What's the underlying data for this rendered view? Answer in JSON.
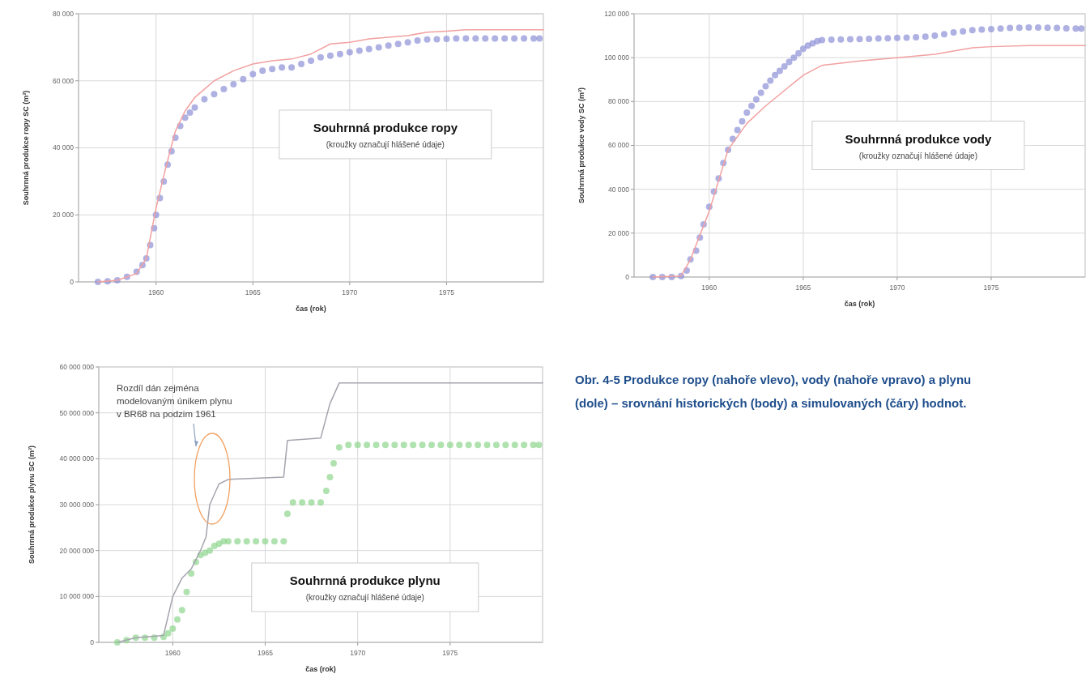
{
  "chart_data": [
    {
      "type": "line",
      "title": "Souhrnná produkce ropy",
      "subtitle": "(kroužky označují hlášené údaje)",
      "xlabel": "čas (rok)",
      "ylabel": "Souhrnná produkce ropy SC (m³)",
      "xlim": [
        1956,
        1980
      ],
      "xticks": [
        1960,
        1965,
        1970,
        1975
      ],
      "ylim": [
        0,
        80000
      ],
      "yticks": [
        {
          "value": 0,
          "label": "0"
        },
        {
          "value": 20000,
          "label": "20 000"
        },
        {
          "value": 40000,
          "label": "40 000"
        },
        {
          "value": 60000,
          "label": "60 000"
        },
        {
          "value": 80000,
          "label": "80 000"
        }
      ],
      "grid": true,
      "series": [
        {
          "type": "scatter",
          "marker": "circle",
          "color": "#8c90d6",
          "x": [
            1957,
            1957.5,
            1958,
            1958.5,
            1959,
            1959.3,
            1959.5,
            1959.7,
            1959.9,
            1960,
            1960.2,
            1960.4,
            1960.6,
            1960.8,
            1961,
            1961.25,
            1961.5,
            1961.75,
            1962,
            1962.5,
            1963,
            1963.5,
            1964,
            1964.5,
            1965,
            1965.5,
            1966,
            1966.5,
            1967,
            1967.5,
            1968,
            1968.5,
            1969,
            1969.5,
            1970,
            1970.5,
            1971,
            1971.5,
            1972,
            1972.5,
            1973,
            1973.5,
            1974,
            1974.5,
            1975,
            1975.5,
            1976,
            1976.5,
            1977,
            1977.5,
            1978,
            1978.5,
            1979,
            1979.5,
            1979.8
          ],
          "values": [
            0,
            200,
            500,
            1500,
            3000,
            5000,
            7000,
            11000,
            16000,
            20000,
            25000,
            30000,
            35000,
            39000,
            43000,
            46500,
            49000,
            50500,
            52000,
            54500,
            56000,
            57500,
            59000,
            60500,
            62000,
            63000,
            63500,
            64000,
            64000,
            65000,
            66000,
            67000,
            67500,
            68000,
            68500,
            69000,
            69500,
            70000,
            70500,
            71000,
            71500,
            72000,
            72300,
            72400,
            72500,
            72600,
            72600,
            72600,
            72600,
            72600,
            72600,
            72600,
            72600,
            72600,
            72600
          ]
        },
        {
          "type": "line",
          "color": "#f2a0a0",
          "x": [
            1957,
            1958,
            1959,
            1959.5,
            1960,
            1960.5,
            1961,
            1961.5,
            1962,
            1963,
            1964,
            1965,
            1966,
            1967,
            1968,
            1969,
            1970,
            1971,
            1972,
            1973,
            1974,
            1975,
            1976,
            1980
          ],
          "values": [
            0,
            500,
            2500,
            7000,
            22000,
            34000,
            45000,
            51000,
            55000,
            60000,
            63000,
            65000,
            66000,
            66500,
            68000,
            71000,
            71500,
            72500,
            73000,
            73500,
            74500,
            74800,
            75200,
            75200
          ]
        }
      ]
    },
    {
      "type": "line",
      "title": "Souhrnná produkce vody",
      "subtitle": "(kroužky označují hlášené údaje)",
      "xlabel": "čas (rok)",
      "ylabel": "Souhrnná produkce vody SC (m³)",
      "xlim": [
        1956,
        1980
      ],
      "xticks": [
        1960,
        1965,
        1970,
        1975
      ],
      "ylim": [
        0,
        120000
      ],
      "yticks": [
        {
          "value": 0,
          "label": "0"
        },
        {
          "value": 20000,
          "label": "20 000"
        },
        {
          "value": 40000,
          "label": "40 000"
        },
        {
          "value": 60000,
          "label": "60 000"
        },
        {
          "value": 80000,
          "label": "80 000"
        },
        {
          "value": 100000,
          "label": "100 000"
        },
        {
          "value": 120000,
          "label": "120 000"
        }
      ],
      "grid": true,
      "series": [
        {
          "type": "scatter",
          "marker": "circle",
          "color": "#8c90d6",
          "x": [
            1957,
            1957.5,
            1958,
            1958.5,
            1958.8,
            1959,
            1959.3,
            1959.5,
            1959.7,
            1960,
            1960.25,
            1960.5,
            1960.75,
            1961,
            1961.25,
            1961.5,
            1961.75,
            1962,
            1962.25,
            1962.5,
            1962.75,
            1963,
            1963.25,
            1963.5,
            1963.75,
            1964,
            1964.25,
            1964.5,
            1964.75,
            1965,
            1965.25,
            1965.5,
            1965.75,
            1966,
            1966.5,
            1967,
            1967.5,
            1968,
            1968.5,
            1969,
            1969.5,
            1970,
            1970.5,
            1971,
            1971.5,
            1972,
            1972.5,
            1973,
            1973.5,
            1974,
            1974.5,
            1975,
            1975.5,
            1976,
            1976.5,
            1977,
            1977.5,
            1978,
            1978.5,
            1979,
            1979.5,
            1979.8
          ],
          "values": [
            0,
            0,
            0,
            500,
            3000,
            8000,
            12000,
            18000,
            24000,
            32000,
            39000,
            45000,
            52000,
            58000,
            63000,
            67000,
            71000,
            75000,
            78000,
            81000,
            84000,
            87000,
            89500,
            92000,
            94000,
            96000,
            98000,
            100000,
            102000,
            104000,
            105500,
            106500,
            107500,
            108000,
            108200,
            108300,
            108400,
            108500,
            108600,
            108700,
            108800,
            109000,
            109100,
            109300,
            109600,
            110000,
            110700,
            111500,
            112000,
            112500,
            112800,
            113000,
            113300,
            113500,
            113600,
            113700,
            113700,
            113600,
            113500,
            113400,
            113300,
            113300
          ]
        },
        {
          "type": "line",
          "color": "#f2a0a0",
          "x": [
            1957,
            1958.5,
            1959,
            1960,
            1961,
            1962,
            1963,
            1964,
            1965,
            1966,
            1967,
            1968,
            1970,
            1972,
            1973,
            1974,
            1975,
            1977,
            1980
          ],
          "values": [
            0,
            500,
            8000,
            30000,
            58000,
            70000,
            78000,
            85000,
            92000,
            96500,
            97500,
            98500,
            100000,
            101500,
            103000,
            104500,
            105000,
            105500,
            105500
          ]
        }
      ]
    },
    {
      "type": "line",
      "title": "Souhrnná produkce plynu",
      "subtitle": "(kroužky označují hlášené údaje)",
      "xlabel": "čas (rok)",
      "ylabel": "Souhrnná produkce plynu SC (m³)",
      "xlim": [
        1956,
        1980
      ],
      "xticks": [
        1960,
        1965,
        1970,
        1975
      ],
      "ylim": [
        0,
        60000000
      ],
      "yticks": [
        {
          "value": 0,
          "label": "0"
        },
        {
          "value": 10000000,
          "label": "10 000 000"
        },
        {
          "value": 20000000,
          "label": "20 000 000"
        },
        {
          "value": 30000000,
          "label": "30 000 000"
        },
        {
          "value": 40000000,
          "label": "40 000 000"
        },
        {
          "value": 50000000,
          "label": "50 000 000"
        },
        {
          "value": 60000000,
          "label": "60 000 000"
        }
      ],
      "grid": true,
      "annotations": [
        "Rozdíl dán zejména\nmodelovaným únikem plynu\nv BR68 na podzim 1961"
      ],
      "series": [
        {
          "type": "scatter",
          "marker": "circle",
          "color": "#8fd68f",
          "x": [
            1957,
            1957.5,
            1958,
            1958.5,
            1959,
            1959.5,
            1959.75,
            1960,
            1960.25,
            1960.5,
            1960.75,
            1961,
            1961.25,
            1961.5,
            1961.75,
            1962,
            1962.25,
            1962.5,
            1962.75,
            1963,
            1963.5,
            1964,
            1964.5,
            1965,
            1965.5,
            1966,
            1966.2,
            1966.5,
            1967,
            1967.5,
            1968,
            1968.3,
            1968.5,
            1968.7,
            1969,
            1969.5,
            1970,
            1970.5,
            1971,
            1971.5,
            1972,
            1972.5,
            1973,
            1973.5,
            1974,
            1974.5,
            1975,
            1975.5,
            1976,
            1976.5,
            1977,
            1977.5,
            1978,
            1978.5,
            1979,
            1979.5,
            1979.8
          ],
          "values": [
            0,
            500000,
            1000000,
            1000000,
            1000000,
            1200000,
            2000000,
            3000000,
            5000000,
            7000000,
            11000000,
            15000000,
            17500000,
            19000000,
            19500000,
            20000000,
            21000000,
            21500000,
            22000000,
            22000000,
            22000000,
            22000000,
            22000000,
            22000000,
            22000000,
            22000000,
            28000000,
            30500000,
            30500000,
            30500000,
            30500000,
            33000000,
            36000000,
            39000000,
            42500000,
            43000000,
            43000000,
            43000000,
            43000000,
            43000000,
            43000000,
            43000000,
            43000000,
            43000000,
            43000000,
            43000000,
            43000000,
            43000000,
            43000000,
            43000000,
            43000000,
            43000000,
            43000000,
            43000000,
            43000000,
            43000000,
            43000000
          ]
        },
        {
          "type": "line",
          "color": "#a4a4ae",
          "x": [
            1957,
            1958,
            1959.5,
            1960,
            1960.5,
            1961,
            1961.5,
            1961.8,
            1962,
            1962.5,
            1963,
            1966,
            1966.2,
            1968,
            1968.5,
            1969,
            1980
          ],
          "values": [
            0,
            1000000,
            1500000,
            10000000,
            14000000,
            16000000,
            20000000,
            23000000,
            30000000,
            34500000,
            35500000,
            36000000,
            44000000,
            44500000,
            52000000,
            56500000,
            56500000
          ]
        }
      ]
    },
    {
      "type": "other",
      "title": "Obr. 4-5 Produkce ropy (nahoře vlevo), vody (nahoře vpravo) a plynu (dole) – srovnání historických (body) a simulovaných (čáry) hodnot."
    }
  ]
}
